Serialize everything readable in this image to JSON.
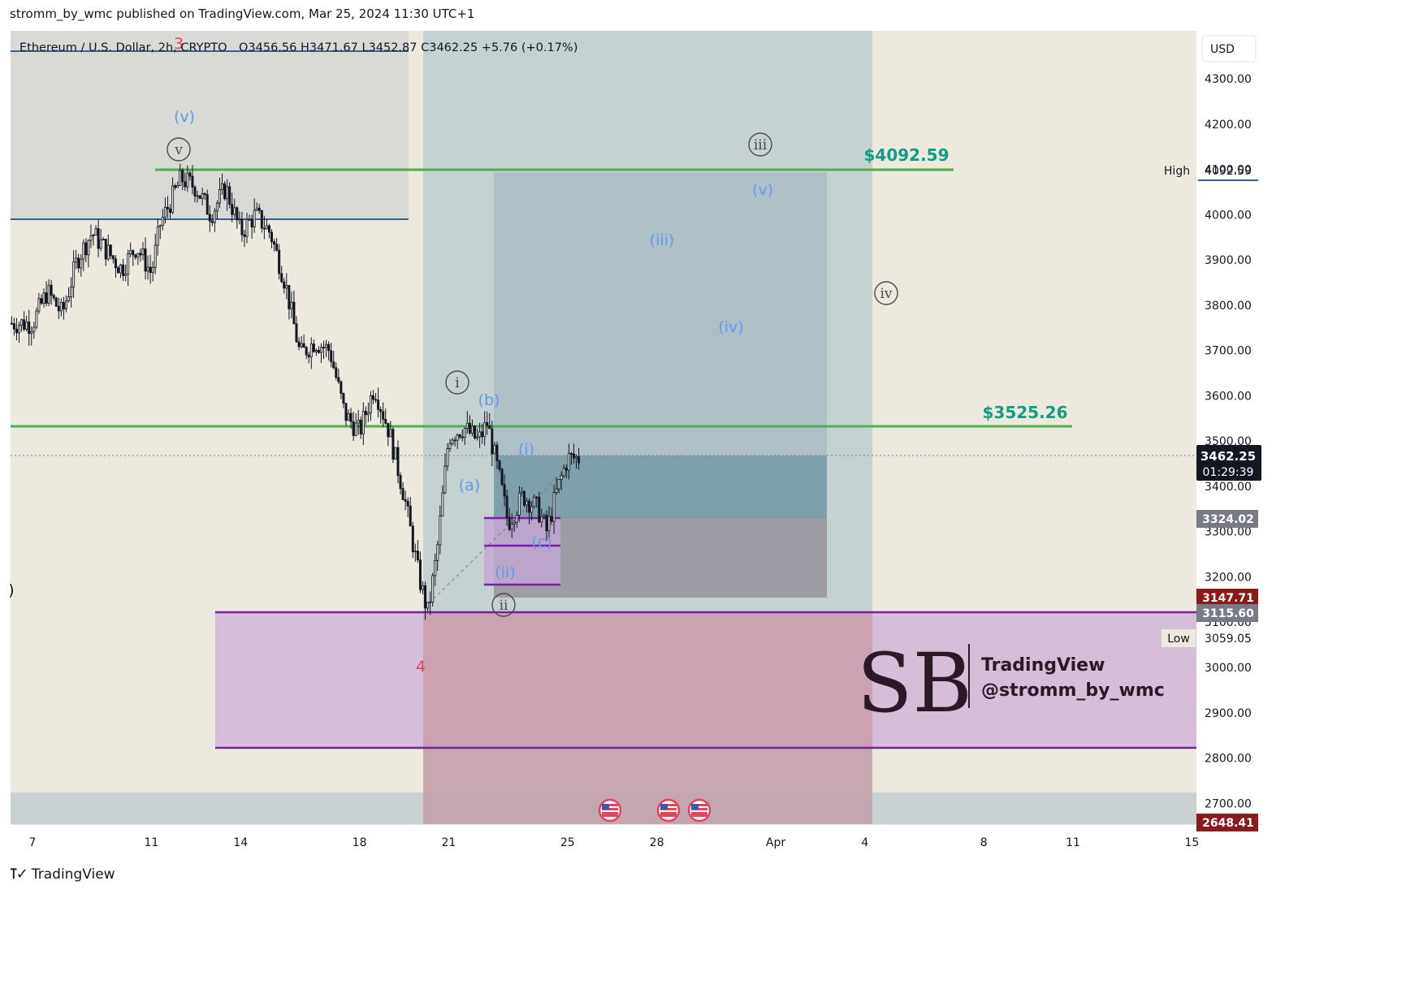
{
  "header": {
    "publisher_line": "stromm_by_wmc published on TradingView.com, Mar 25, 2024 11:30 UTC+1"
  },
  "symbol_bar": {
    "name": "Ethereum / U.S. Dollar, 2h, CRYPTO",
    "ohlc": "O3456.56  H3471.67  L3452.87  C3462.25  +5.76 (+0.17%)",
    "currency": "USD"
  },
  "footer": {
    "brand": "TradingView"
  },
  "watermark": {
    "line1": "TradingView",
    "line2": "@stromm_by_wmc",
    "monogram": "SB"
  },
  "colors": {
    "chart_bg": "#ede9df",
    "green_line": "#4caf50",
    "green_text": "#0e9e85",
    "purple": "#7b1fa2",
    "blue_label": "#5b9cf0",
    "red_label": "#e0455e",
    "price_tag": "#131722"
  },
  "chart_data": {
    "type": "candlestick",
    "title": "Ethereum / U.S. Dollar, 2h, CRYPTO",
    "xlabel": "",
    "ylabel": "",
    "ylim": [
      2648,
      4380
    ],
    "x_ticks": [
      "7",
      "11",
      "14",
      "18",
      "21",
      "25",
      "28",
      "Apr",
      "4",
      "8",
      "11",
      "15"
    ],
    "y_ticks": [
      2700,
      2800,
      2900,
      3000,
      3100,
      3200,
      3300,
      3400,
      3500,
      3600,
      3700,
      3800,
      3900,
      4000,
      4100,
      4200,
      4300
    ],
    "x_start": "Mar 7",
    "x_end": "Apr 15",
    "price_path": [
      [
        "Mar 7",
        3760
      ],
      [
        "Mar 7.5",
        3830
      ],
      [
        "Mar 8",
        3780
      ],
      [
        "Mar 8.5",
        3900
      ],
      [
        "Mar 9",
        3960
      ],
      [
        "Mar 9.5",
        3920
      ],
      [
        "Mar 10",
        3880
      ],
      [
        "Mar 10.5",
        3930
      ],
      [
        "Mar 11",
        3870
      ],
      [
        "Mar 11.3",
        3980
      ],
      [
        "Mar 12",
        4080
      ],
      [
        "Mar 12.5",
        4060
      ],
      [
        "Mar 13",
        4000
      ],
      [
        "Mar 13.5",
        4060
      ],
      [
        "Mar 14",
        3960
      ],
      [
        "Mar 14.5",
        4000
      ],
      [
        "Mar 15",
        3960
      ],
      [
        "Mar 15.5",
        3850
      ],
      [
        "Mar 16",
        3690
      ],
      [
        "Mar 16.5",
        3720
      ],
      [
        "Mar 17",
        3700
      ],
      [
        "Mar 17.5",
        3560
      ],
      [
        "Mar 18",
        3520
      ],
      [
        "Mar 18.5",
        3620
      ],
      [
        "Mar 19",
        3520
      ],
      [
        "Mar 19.5",
        3380
      ],
      [
        "Mar 20",
        3200
      ],
      [
        "Mar 20.3",
        3120
      ],
      [
        "Mar 20.6",
        3250
      ],
      [
        "Mar 21",
        3510
      ],
      [
        "Mar 21.5",
        3530
      ],
      [
        "Mar 22",
        3500
      ],
      [
        "Mar 22.3",
        3540
      ],
      [
        "Mar 22.7",
        3420
      ],
      [
        "Mar 23",
        3320
      ],
      [
        "Mar 23.5",
        3380
      ],
      [
        "Mar 24",
        3350
      ],
      [
        "Mar 24.3",
        3300
      ],
      [
        "Mar 24.6",
        3380
      ],
      [
        "Mar 25",
        3462
      ]
    ],
    "last_price": "3462.25",
    "countdown": "01:29:39",
    "high": {
      "label": "High",
      "value": "4092.59"
    },
    "low": {
      "label": "Low",
      "value": "3059.05"
    },
    "price_tags": [
      {
        "value": "3324.02",
        "color": "#787b86"
      },
      {
        "value": "3147.71",
        "color": "#8b1a1a"
      },
      {
        "value": "3115.60",
        "color": "#787b86"
      },
      {
        "value": "2648.41",
        "color": "#8b1a1a"
      }
    ],
    "annotations": {
      "target_high": "$4092.59",
      "target_mid": "$3525.26",
      "waves": [
        {
          "text": "3",
          "color": "red"
        },
        {
          "text": "4",
          "color": "red"
        },
        {
          "text": "(v)",
          "color": "blue"
        },
        {
          "text": "v",
          "color": "circle"
        },
        {
          "text": "iii",
          "color": "circle"
        },
        {
          "text": "(v)",
          "color": "blue"
        },
        {
          "text": "(iii)",
          "color": "blue"
        },
        {
          "text": "iv",
          "color": "circle"
        },
        {
          "text": "(iv)",
          "color": "blue"
        },
        {
          "text": "i",
          "color": "circle"
        },
        {
          "text": "(b)",
          "color": "blue"
        },
        {
          "text": "(a)",
          "color": "blue"
        },
        {
          "text": "(i)",
          "color": "blue"
        },
        {
          "text": "(ii)",
          "color": "blue"
        },
        {
          "text": "(c)",
          "color": "blue"
        },
        {
          "text": "ii",
          "color": "circle"
        },
        {
          "text": ")",
          "color": "dark"
        }
      ]
    }
  }
}
